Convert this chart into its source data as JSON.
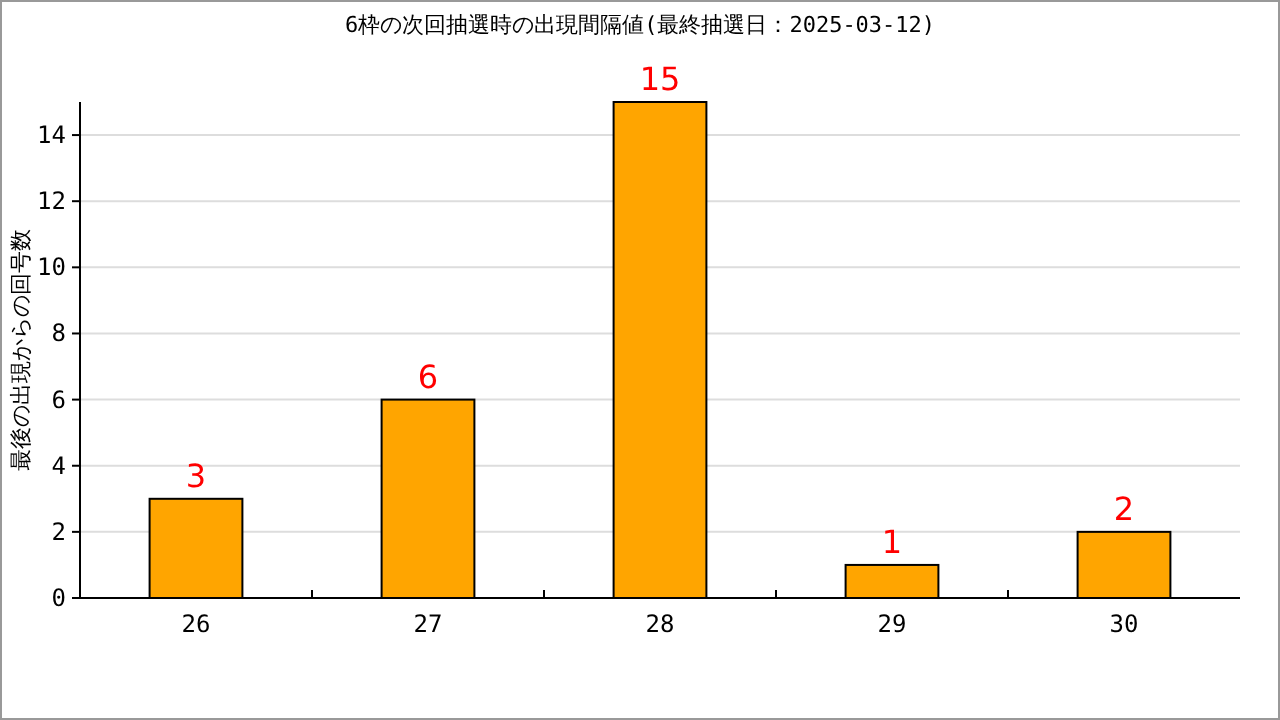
{
  "chart_data": {
    "type": "bar",
    "title": "6枠の次回抽選時の出現間隔値(最終抽選日：2025-03-12)",
    "ylabel": "最後の出現からの回号数",
    "categories": [
      "26",
      "27",
      "28",
      "29",
      "30"
    ],
    "values": [
      3,
      6,
      15,
      1,
      2
    ],
    "color": "#ffa500",
    "ylim": [
      0,
      15
    ],
    "yticks": [
      0,
      2,
      4,
      6,
      8,
      10,
      12,
      14
    ],
    "grid": "y",
    "data_labels": true
  }
}
